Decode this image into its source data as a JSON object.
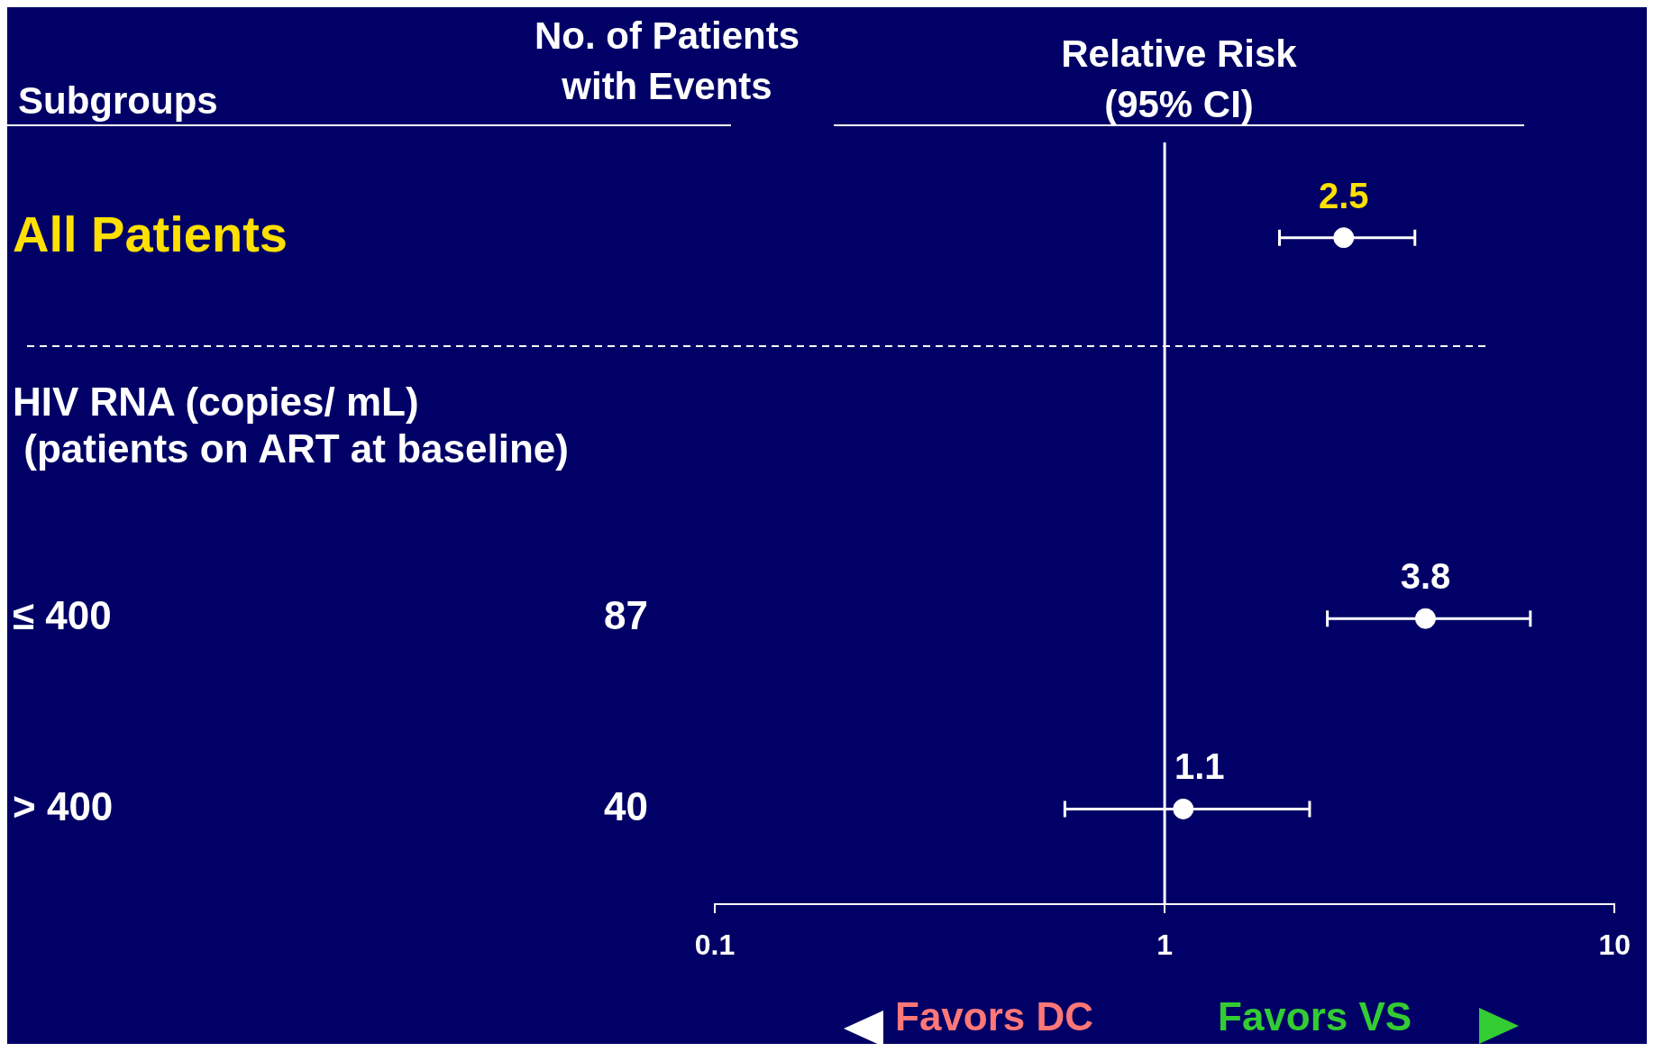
{
  "chart_data": {
    "type": "scatter",
    "orientation": "horizontal",
    "xlabel": "Relative Risk (95% CI)",
    "categories": [
      "All Patients",
      "HIV RNA (copies/ mL)\n (patients on ART at baseline)",
      "≤ 400",
      "> 400"
    ],
    "series": [
      {
        "color": "#ffffff",
        "values": [
          2.5,
          null,
          3.8,
          1.1
        ],
        "errors": [
          [
            1.8,
            3.6
          ],
          null,
          [
            2.3,
            6.5
          ],
          [
            0.6,
            2.1
          ]
        ]
      }
    ],
    "log": "x",
    "xlim": [
      0.1,
      10
    ],
    "xticks": [
      0.1,
      1,
      10
    ],
    "marker": "circle",
    "data_labels": true,
    "ref_lines": [
      {
        "axis": "x",
        "value": 1,
        "color": "#ffffff"
      }
    ],
    "annotations": [
      "Subgroups",
      "No. of Patients with Events",
      "87",
      "40",
      "Favors DC",
      "Favors VS"
    ]
  }
}
